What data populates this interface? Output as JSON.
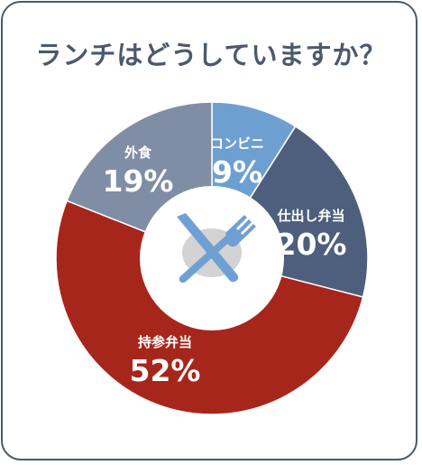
{
  "title": "ランチはどうしていますか？",
  "chart_data": {
    "type": "pie",
    "variant": "donut",
    "title": "ランチはどうしていますか？",
    "slices": [
      {
        "label": "コンビニ",
        "value": 9,
        "display": "9%",
        "color": "#6e9fd1"
      },
      {
        "label": "仕出し弁当",
        "value": 20,
        "display": "20%",
        "color": "#4d5f7d"
      },
      {
        "label": "持参弁当",
        "value": 52,
        "display": "52%",
        "color": "#a7261b"
      },
      {
        "label": "外食",
        "value": 19,
        "display": "19%",
        "color": "#7f8ea4"
      }
    ],
    "center_icon": "plate-fork-knife-icon"
  }
}
